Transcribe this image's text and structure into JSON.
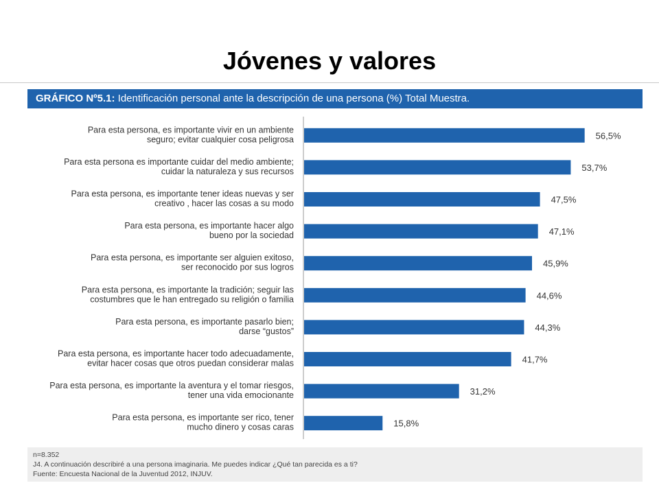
{
  "slide": {
    "title": "Jóvenes y valores"
  },
  "header": {
    "label": "GRÁFICO Nº5.1:",
    "text": "Identificación personal ante la descripción de una persona (%) Total Muestra."
  },
  "colors": {
    "bar": "#1f63ad",
    "header_bg": "#1f63ad",
    "footer_bg": "#eeeeee"
  },
  "chart_data": {
    "type": "bar",
    "orientation": "horizontal",
    "categories": [
      [
        "Para esta persona, es importante vivir en un ambiente",
        "seguro; evitar cualquier cosa peligrosa"
      ],
      [
        "Para esta persona es importante cuidar del medio ambiente;",
        "cuidar la naturaleza y sus recursos"
      ],
      [
        "Para esta persona, es importante tener ideas nuevas y ser",
        "creativo , hacer las cosas a su modo"
      ],
      [
        "Para esta persona, es importante hacer algo",
        "bueno por la sociedad"
      ],
      [
        "Para esta persona, es importante ser alguien exitoso,",
        "ser reconocido por sus logros"
      ],
      [
        "Para esta persona, es importante la tradición; seguir las",
        "costumbres que le han entregado su religión o familia"
      ],
      [
        "Para esta persona, es importante pasarlo bien;",
        "darse “gustos”"
      ],
      [
        "Para esta persona, es importante hacer todo adecuadamente,",
        "evitar hacer cosas que otros puedan considerar malas"
      ],
      [
        "Para esta persona, es importante la aventura y el tomar riesgos,",
        "tener una vida emocionante"
      ],
      [
        "Para esta persona, es importante ser rico, tener",
        "mucho dinero y cosas caras"
      ]
    ],
    "values": [
      56.5,
      53.7,
      47.5,
      47.1,
      45.9,
      44.6,
      44.3,
      41.7,
      31.2,
      15.8
    ],
    "value_labels": [
      "56,5%",
      "53,7%",
      "47,5%",
      "47,1%",
      "45,9%",
      "44,6%",
      "44,3%",
      "41,7%",
      "31,2%",
      "15,8%"
    ],
    "xlim": [
      0,
      60
    ],
    "grid": false
  },
  "footer": {
    "lines": [
      "n=8.352",
      "J4. A continuación describiré a una persona imaginaria. Me puedes indicar ¿Qué tan parecida es a ti?",
      "Fuente: Encuesta Nacional de la Juventud 2012, INJUV."
    ]
  }
}
